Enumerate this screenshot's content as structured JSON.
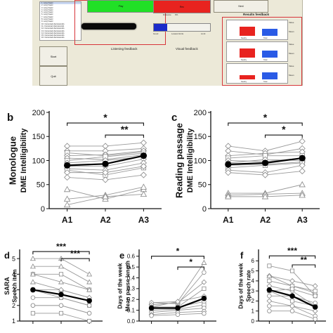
{
  "ui": {
    "word_list": [
      "1. Long Vowel",
      "2. Long Vowel",
      "3. Long Vowel",
      "4. Long Vowel",
      "5. Long Vowel",
      "6. Long Vowel",
      "7. Long Vowel",
      "8. Long Vowel",
      "9. Long Vowel",
      "10. Consonant decrescendo",
      "11. Consonant decrescendo",
      "12. Consonant decrescendo",
      "13. Consonant decrescendo",
      "14. Consonant decrescendo",
      "15. Consonant decrescendo",
      "16. Consonant decrescendo"
    ],
    "green_button": "Play",
    "red_button": "Rec",
    "right_button": "Next",
    "start_button": "Start",
    "quit_button": "Quit",
    "listening_feedback": "Listening feedback",
    "visual_feedback": "Visual feedback",
    "results_feedback": "Results feedback",
    "distance_label": "Distance",
    "distance_value": "0%",
    "bar_axis": [
      "Good",
      "Lowest limits",
      "Limit"
    ],
    "results_rows": [
      {
        "side": "Value",
        "side2": "Mean",
        "legend": [
          "Nearby",
          "Total"
        ]
      },
      {
        "side": "Value",
        "side2": "Mean",
        "legend": [
          "Nearby",
          "Total"
        ]
      },
      {
        "side": "Value",
        "side2": "Mean",
        "legend": [
          "Nearby",
          "Total"
        ]
      }
    ],
    "colors": {
      "green": "#21e026",
      "red": "#e8231f",
      "blue": "#1b2bc9",
      "results_blue": "#2a5be6",
      "results_red": "#e8231f"
    }
  },
  "chart_data": [
    {
      "panel": "b",
      "type": "line",
      "ylabel_line1": "Monologue",
      "ylabel_line2": "DME Intelligibility",
      "categories": [
        "A1",
        "A2",
        "A3"
      ],
      "ylim": [
        0,
        200
      ],
      "yticks": [
        0,
        50,
        100,
        150,
        200
      ],
      "mean": [
        90,
        93,
        110
      ],
      "individuals": [
        {
          "marker": "diamond",
          "values": [
            130,
            130,
            137
          ]
        },
        {
          "marker": "diamond",
          "values": [
            120,
            120,
            125
          ]
        },
        {
          "marker": "square",
          "values": [
            116,
            110,
            118
          ]
        },
        {
          "marker": "diamond",
          "values": [
            110,
            112,
            120
          ]
        },
        {
          "marker": "diamond",
          "values": [
            105,
            102,
            112
          ]
        },
        {
          "marker": "square",
          "values": [
            100,
            108,
            115
          ]
        },
        {
          "marker": "diamond",
          "values": [
            95,
            100,
            108
          ]
        },
        {
          "marker": "diamond",
          "values": [
            88,
            88,
            103
          ]
        },
        {
          "marker": "diamond",
          "values": [
            83,
            80,
            95
          ]
        },
        {
          "marker": "square",
          "values": [
            80,
            70,
            85
          ]
        },
        {
          "marker": "diamond",
          "values": [
            75,
            75,
            88
          ]
        },
        {
          "marker": "diamond",
          "values": [
            65,
            60,
            70
          ]
        },
        {
          "marker": "triangle",
          "values": [
            40,
            20,
            40
          ]
        },
        {
          "marker": "triangle",
          "values": [
            20,
            28,
            45
          ]
        },
        {
          "marker": "triangle",
          "values": [
            8,
            25,
            30
          ]
        }
      ],
      "significance": [
        {
          "from": "A1",
          "to": "A3",
          "label": "*",
          "y": 178
        },
        {
          "from": "A2",
          "to": "A3",
          "label": "**",
          "y": 153
        }
      ]
    },
    {
      "panel": "c",
      "type": "line",
      "ylabel_line1": "Reading passage",
      "ylabel_line2": "DME Intelligibility",
      "categories": [
        "A1",
        "A2",
        "A3"
      ],
      "ylim": [
        0,
        200
      ],
      "yticks": [
        0,
        50,
        100,
        150,
        200
      ],
      "mean": [
        92,
        95,
        105
      ],
      "individuals": [
        {
          "marker": "diamond",
          "values": [
            130,
            120,
            140
          ]
        },
        {
          "marker": "diamond",
          "values": [
            120,
            112,
            125
          ]
        },
        {
          "marker": "diamond",
          "values": [
            110,
            115,
            118
          ]
        },
        {
          "marker": "square",
          "values": [
            105,
            110,
            110
          ]
        },
        {
          "marker": "diamond",
          "values": [
            100,
            98,
            105
          ]
        },
        {
          "marker": "diamond",
          "values": [
            95,
            102,
            100
          ]
        },
        {
          "marker": "diamond",
          "values": [
            90,
            92,
            97
          ]
        },
        {
          "marker": "square",
          "values": [
            85,
            90,
            95
          ]
        },
        {
          "marker": "diamond",
          "values": [
            80,
            75,
            90
          ]
        },
        {
          "marker": "diamond",
          "values": [
            75,
            70,
            78
          ]
        },
        {
          "marker": "triangle",
          "values": [
            32,
            32,
            50
          ]
        },
        {
          "marker": "triangle",
          "values": [
            28,
            30,
            32
          ]
        },
        {
          "marker": "triangle",
          "values": [
            25,
            25,
            28
          ]
        }
      ],
      "significance": [
        {
          "from": "A1",
          "to": "A3",
          "label": "*",
          "y": 178
        },
        {
          "from": "A2",
          "to": "A3",
          "label": "*",
          "y": 153
        }
      ]
    },
    {
      "panel": "d",
      "type": "line",
      "ylabel_line1": "SARA",
      "ylabel_line2": "Speech item",
      "categories": [
        "",
        "",
        ""
      ],
      "ylim": [
        1,
        5.5
      ],
      "yticks": [
        1,
        2,
        3,
        4,
        5
      ],
      "mean": [
        3.0,
        2.7,
        2.3
      ],
      "individuals": [
        {
          "marker": "triangle",
          "values": [
            5,
            5,
            4
          ]
        },
        {
          "marker": "triangle",
          "values": [
            4.5,
            4.5,
            3.5
          ]
        },
        {
          "marker": "square",
          "values": [
            4,
            4,
            3
          ]
        },
        {
          "marker": "triangle",
          "values": [
            4,
            3.5,
            3
          ]
        },
        {
          "marker": "triangle",
          "values": [
            3.5,
            3,
            2.5
          ]
        },
        {
          "marker": "diamond",
          "values": [
            3,
            3,
            2.5
          ]
        },
        {
          "marker": "square",
          "values": [
            3,
            2.5,
            2
          ]
        },
        {
          "marker": "circle",
          "values": [
            2.5,
            2.5,
            2
          ]
        },
        {
          "marker": "circle",
          "values": [
            2,
            2,
            1.5
          ]
        },
        {
          "marker": "circle",
          "values": [
            2,
            2,
            1.5
          ]
        },
        {
          "marker": "square",
          "values": [
            1.5,
            1.5,
            1
          ]
        }
      ],
      "significance": [
        {
          "from": "A1",
          "to": "A3",
          "label": "***",
          "y": 5.45
        },
        {
          "from": "A2",
          "to": "A3",
          "label": "***",
          "y": 5.0
        }
      ]
    },
    {
      "panel": "e",
      "type": "line",
      "ylabel_line1": "Days of the week",
      "ylabel_line2": "Mean pause length",
      "categories": [
        "",
        "",
        ""
      ],
      "ylim": [
        0,
        0.65
      ],
      "yticks": [
        0.0,
        0.1,
        0.2,
        0.3,
        0.4,
        0.5,
        0.6
      ],
      "mean": [
        0.12,
        0.12,
        0.21
      ],
      "individuals": [
        {
          "marker": "triangle",
          "values": [
            0.17,
            0.18,
            0.54
          ]
        },
        {
          "marker": "circle",
          "values": [
            0.17,
            0.16,
            0.45
          ]
        },
        {
          "marker": "diamond",
          "values": [
            0.15,
            0.17,
            0.36
          ]
        },
        {
          "marker": "square",
          "values": [
            0.13,
            0.13,
            0.3
          ]
        },
        {
          "marker": "diamond",
          "values": [
            0.13,
            0.18,
            0.23
          ]
        },
        {
          "marker": "circle",
          "values": [
            0.12,
            0.13,
            0.18
          ]
        },
        {
          "marker": "square",
          "values": [
            0.1,
            0.11,
            0.15
          ]
        },
        {
          "marker": "circle",
          "values": [
            0.08,
            0.1,
            0.12
          ]
        },
        {
          "marker": "diamond",
          "values": [
            0.06,
            0.08,
            0.09
          ]
        },
        {
          "marker": "circle",
          "values": [
            0.05,
            0.06,
            0.07
          ]
        }
      ],
      "significance": [
        {
          "from": "A1",
          "to": "A3",
          "label": "*",
          "y": 0.6
        },
        {
          "from": "A2",
          "to": "A3",
          "label": "*",
          "y": 0.5
        }
      ]
    },
    {
      "panel": "f",
      "type": "line",
      "ylabel_line1": "Days of the week",
      "ylabel_line2": "Speech rate",
      "categories": [
        "",
        "",
        ""
      ],
      "ylim": [
        0,
        7
      ],
      "yticks": [
        0,
        1,
        2,
        3,
        4,
        5,
        6
      ],
      "mean": [
        3.1,
        2.5,
        1.4
      ],
      "individuals": [
        {
          "marker": "square",
          "values": [
            5.5,
            5,
            2.5
          ]
        },
        {
          "marker": "diamond",
          "values": [
            4.5,
            4,
            3.5
          ]
        },
        {
          "marker": "triangle",
          "values": [
            4.5,
            3.5,
            2.8
          ]
        },
        {
          "marker": "square",
          "values": [
            4,
            3.5,
            3
          ]
        },
        {
          "marker": "diamond",
          "values": [
            3.5,
            3,
            1.5
          ]
        },
        {
          "marker": "circle",
          "values": [
            3,
            3.2,
            2.5
          ]
        },
        {
          "marker": "square",
          "values": [
            3,
            2,
            1.5
          ]
        },
        {
          "marker": "circle",
          "values": [
            2.5,
            2.5,
            1.8
          ]
        },
        {
          "marker": "diamond",
          "values": [
            2,
            1.5,
            1
          ]
        },
        {
          "marker": "circle",
          "values": [
            1.5,
            1.5,
            0.5
          ]
        },
        {
          "marker": "circle",
          "values": [
            1,
            1,
            0.2
          ]
        }
      ],
      "significance": [
        {
          "from": "A1",
          "to": "A3",
          "label": "***",
          "y": 6.5
        },
        {
          "from": "A2",
          "to": "A3",
          "label": "**",
          "y": 5.6
        }
      ]
    }
  ]
}
